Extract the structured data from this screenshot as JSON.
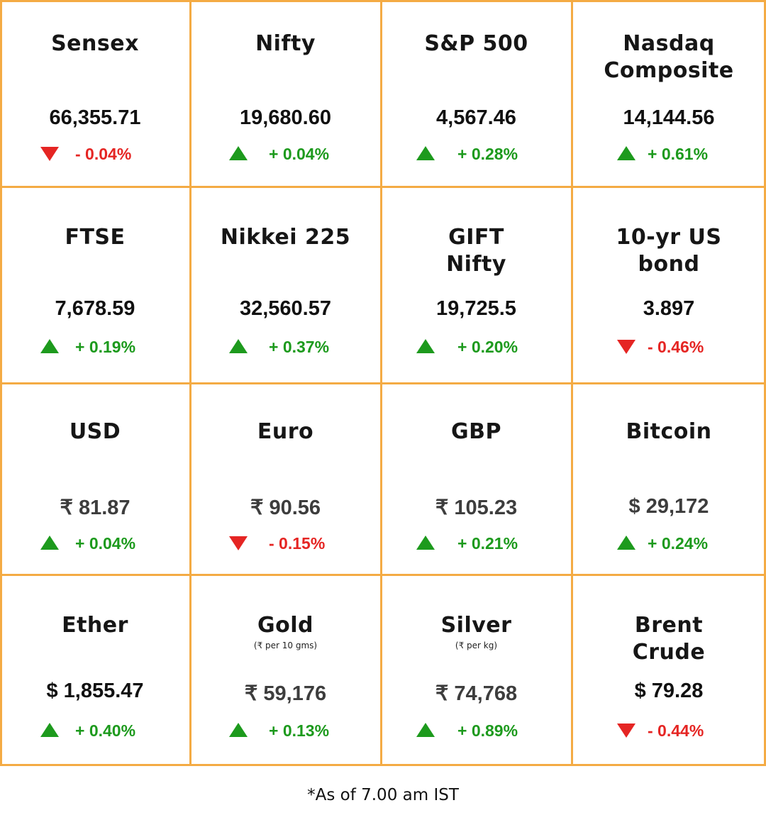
{
  "tiles": [
    [
      {
        "title_lines": [
          "Sensex"
        ],
        "value": "66,355.71",
        "change": "- 0.04%",
        "direction": "down"
      },
      {
        "title_lines": [
          "Nifty"
        ],
        "value": "19,680.60",
        "change": "+ 0.04%",
        "direction": "up"
      },
      {
        "title_lines": [
          "S&P 500"
        ],
        "value": "4,567.46",
        "change": "+ 0.28%",
        "direction": "up"
      },
      {
        "title_lines": [
          "Nasdaq",
          "Composite"
        ],
        "value": "14,144.56",
        "change": "+ 0.61%",
        "direction": "up"
      }
    ],
    [
      {
        "title_lines": [
          "FTSE"
        ],
        "value": "7,678.59",
        "change": "+ 0.19%",
        "direction": "up"
      },
      {
        "title_lines": [
          "Nikkei 225"
        ],
        "value": "32,560.57",
        "change": "+ 0.37%",
        "direction": "up"
      },
      {
        "title_lines": [
          "GIFT",
          "Nifty"
        ],
        "value": "19,725.5",
        "change": "+ 0.20%",
        "direction": "up"
      },
      {
        "title_lines": [
          "10-yr US",
          "bond"
        ],
        "value": "3.897",
        "change": "- 0.46%",
        "direction": "down"
      }
    ],
    [
      {
        "title_lines": [
          "USD"
        ],
        "value": "₹ 81.87",
        "change": "+ 0.04%",
        "direction": "up"
      },
      {
        "title_lines": [
          "Euro"
        ],
        "value": "₹ 90.56",
        "change": "- 0.15%",
        "direction": "down"
      },
      {
        "title_lines": [
          "GBP"
        ],
        "value": "₹ 105.23",
        "change": "+ 0.21%",
        "direction": "up"
      },
      {
        "title_lines": [
          "Bitcoin"
        ],
        "value": "$ 29,172",
        "change": "+ 0.24%",
        "direction": "up"
      }
    ],
    [
      {
        "title_lines": [
          "Ether"
        ],
        "value": "$ 1,855.47",
        "change": "+ 0.40%",
        "direction": "up"
      },
      {
        "title_lines": [
          "Gold"
        ],
        "note": "(₹ per 10 gms)",
        "value": "₹ 59,176",
        "change": "+ 0.13%",
        "direction": "up"
      },
      {
        "title_lines": [
          "Silver"
        ],
        "note": "(₹ per kg)",
        "value": "₹ 74,768",
        "change": "+ 0.89%",
        "direction": "up"
      },
      {
        "title_lines": [
          "Brent",
          "Crude"
        ],
        "value": "$ 79.28",
        "change": "- 0.44%",
        "direction": "down"
      }
    ]
  ],
  "footnote": "*As of 7.00 am IST",
  "colors": {
    "grid": "#f4ab44",
    "up": "#1d9a1d",
    "down": "#e52523"
  },
  "icons": {
    "up": "triangle-up-icon",
    "down": "triangle-down-icon"
  }
}
